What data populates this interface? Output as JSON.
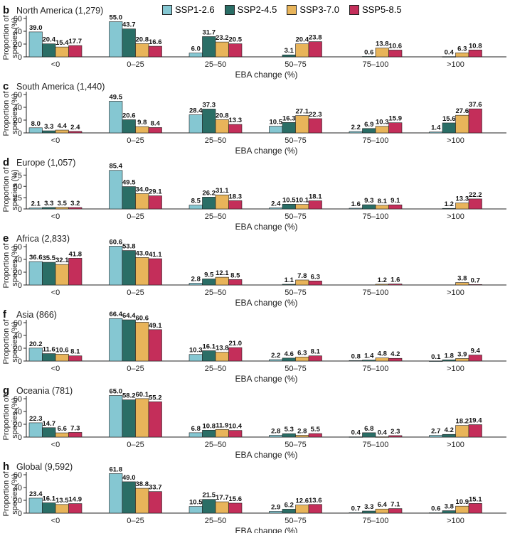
{
  "legend": [
    {
      "name": "SSP1-2.6",
      "color": "#85c7d2"
    },
    {
      "name": "SSP2-4.5",
      "color": "#2a6e66"
    },
    {
      "name": "SSP3-7.0",
      "color": "#e8b45a"
    },
    {
      "name": "SSP5-8.5",
      "color": "#c42e5a"
    }
  ],
  "chart_data": [
    {
      "type": "bar",
      "panel": "b",
      "title": "North America (1,279)",
      "categories": [
        "<0",
        "0–25",
        "25–50",
        "50–75",
        "75–100",
        ">100"
      ],
      "xlabel": "EBA change (%)",
      "ylabel": "Proportion of species (%)",
      "ylim": [
        0,
        60
      ],
      "yticks": [
        0,
        20,
        40,
        60
      ],
      "series": [
        {
          "name": "SSP1-2.6",
          "values": [
            39.0,
            55.0,
            6.0,
            0,
            0,
            0
          ],
          "labels": [
            "39.0",
            "55.0",
            "6.0",
            "",
            "",
            ""
          ]
        },
        {
          "name": "SSP2-4.5",
          "values": [
            20.4,
            43.7,
            31.7,
            3.1,
            0.6,
            0.4
          ],
          "labels": [
            "20.4",
            "43.7",
            "31.7",
            "3.1",
            "0.6",
            "0.4"
          ]
        },
        {
          "name": "SSP3-7.0",
          "values": [
            15.4,
            20.8,
            23.2,
            20.4,
            13.8,
            6.3
          ],
          "labels": [
            "15.4",
            "20.8",
            "23.2",
            "20.4",
            "13.8",
            "6.3"
          ]
        },
        {
          "name": "SSP5-8.5",
          "values": [
            17.7,
            16.6,
            20.5,
            23.8,
            10.6,
            10.8
          ],
          "labels": [
            "17.7",
            "16.6",
            "20.5",
            "23.8",
            "10.6",
            "10.8"
          ]
        }
      ]
    },
    {
      "type": "bar",
      "panel": "c",
      "title": "South America (1,440)",
      "categories": [
        "<0",
        "0–25",
        "25–50",
        "50–75",
        "75–100",
        ">100"
      ],
      "xlabel": "EBA change (%)",
      "ylabel": "Proportion of species (%)",
      "ylim": [
        0,
        60
      ],
      "yticks": [
        0,
        20,
        40,
        60
      ],
      "series": [
        {
          "name": "SSP1-2.6",
          "values": [
            8.0,
            49.5,
            28.4,
            10.5,
            2.2,
            1.4
          ],
          "labels": [
            "8.0",
            "49.5",
            "28.4",
            "10.5",
            "2.2",
            "1.4"
          ]
        },
        {
          "name": "SSP2-4.5",
          "values": [
            3.3,
            20.6,
            37.3,
            16.3,
            6.9,
            15.6
          ],
          "labels": [
            "3.3",
            "20.6",
            "37.3",
            "16.3",
            "6.9",
            "15.6"
          ]
        },
        {
          "name": "SSP3-7.0",
          "values": [
            4.4,
            9.8,
            20.8,
            27.1,
            10.3,
            27.6
          ],
          "labels": [
            "4.4",
            "9.8",
            "20.8",
            "27.1",
            "10.3",
            "27.6"
          ]
        },
        {
          "name": "SSP5-8.5",
          "values": [
            2.4,
            8.4,
            13.3,
            22.3,
            15.9,
            37.6
          ],
          "labels": [
            "2.4",
            "8.4",
            "13.3",
            "22.3",
            "15.9",
            "37.6"
          ]
        }
      ]
    },
    {
      "type": "bar",
      "panel": "d",
      "title": "Europe (1,057)",
      "categories": [
        "<0",
        "0–25",
        "25–50",
        "50–75",
        "75–100",
        ">100"
      ],
      "xlabel": "EBA change (%)",
      "ylabel": "Proportion of species (%)",
      "ylim": [
        0,
        85
      ],
      "yticks": [
        0,
        25,
        50,
        75
      ],
      "series": [
        {
          "name": "SSP1-2.6",
          "values": [
            2.1,
            85.4,
            8.5,
            2.4,
            1.6,
            0
          ],
          "labels": [
            "2.1",
            "85.4",
            "8.5",
            "2.4",
            "1.6",
            ""
          ]
        },
        {
          "name": "SSP2-4.5",
          "values": [
            3.3,
            49.5,
            26.2,
            10.5,
            9.3,
            1.2
          ],
          "labels": [
            "3.3",
            "49.5",
            "26.2",
            "10.5",
            "9.3",
            "1.2"
          ]
        },
        {
          "name": "SSP3-7.0",
          "values": [
            3.5,
            34.0,
            31.1,
            10.1,
            8.1,
            13.3
          ],
          "labels": [
            "3.5",
            "34.0",
            "31.1",
            "10.1",
            "8.1",
            "13.3"
          ]
        },
        {
          "name": "SSP5-8.5",
          "values": [
            3.2,
            29.1,
            18.3,
            18.1,
            9.1,
            22.2
          ],
          "labels": [
            "3.2",
            "29.1",
            "18.3",
            "18.1",
            "9.1",
            "22.2"
          ]
        }
      ]
    },
    {
      "type": "bar",
      "panel": "e",
      "title": "Africa (2,833)",
      "categories": [
        "<0",
        "0–25",
        "25–50",
        "50–75",
        "75–100",
        ">100"
      ],
      "xlabel": "EBA change (%)",
      "ylabel": "Proportion of species (%)",
      "ylim": [
        0,
        60
      ],
      "yticks": [
        0,
        20,
        40,
        60
      ],
      "series": [
        {
          "name": "SSP1-2.6",
          "values": [
            36.6,
            60.6,
            2.8,
            0,
            0,
            0
          ],
          "labels": [
            "36.6",
            "60.6",
            "2.8",
            "",
            "",
            ""
          ]
        },
        {
          "name": "SSP2-4.5",
          "values": [
            35.5,
            53.8,
            9.5,
            1.1,
            0,
            0
          ],
          "labels": [
            "35.5",
            "53.8",
            "9.5",
            "1.1",
            "",
            ""
          ]
        },
        {
          "name": "SSP3-7.0",
          "values": [
            32.1,
            43.0,
            12.1,
            7.8,
            1.2,
            3.8
          ],
          "labels": [
            "32.1",
            "43.0",
            "12.1",
            "7.8",
            "1.2",
            "3.8"
          ]
        },
        {
          "name": "SSP5-8.5",
          "values": [
            41.8,
            41.1,
            8.5,
            6.3,
            1.6,
            0.7
          ],
          "labels": [
            "41.8",
            "41.1",
            "8.5",
            "6.3",
            "1.6",
            "0.7"
          ]
        }
      ]
    },
    {
      "type": "bar",
      "panel": "f",
      "title": "Asia (866)",
      "categories": [
        "<0",
        "0–25",
        "25–50",
        "50–75",
        "75–100",
        ">100"
      ],
      "xlabel": "EBA change (%)",
      "ylabel": "Proportion of species (%)",
      "ylim": [
        0,
        60
      ],
      "yticks": [
        0,
        20,
        40,
        60
      ],
      "series": [
        {
          "name": "SSP1-2.6",
          "values": [
            20.2,
            66.4,
            10.3,
            2.2,
            0.8,
            0.1
          ],
          "labels": [
            "20.2",
            "66.4",
            "10.3",
            "2.2",
            "0.8",
            "0.1"
          ]
        },
        {
          "name": "SSP2-4.5",
          "values": [
            11.6,
            64.4,
            16.1,
            4.6,
            1.4,
            1.8
          ],
          "labels": [
            "11.6",
            "64.4",
            "16.1",
            "4.6",
            "1.4",
            "1.8"
          ]
        },
        {
          "name": "SSP3-7.0",
          "values": [
            10.6,
            60.6,
            13.8,
            6.3,
            4.8,
            3.9
          ],
          "labels": [
            "10.6",
            "60.6",
            "13.8",
            "6.3",
            "4.8",
            "3.9"
          ]
        },
        {
          "name": "SSP5-8.5",
          "values": [
            8.1,
            49.1,
            21.0,
            8.1,
            4.2,
            9.4
          ],
          "labels": [
            "8.1",
            "49.1",
            "21.0",
            "8.1",
            "4.2",
            "9.4"
          ]
        }
      ]
    },
    {
      "type": "bar",
      "panel": "g",
      "title": "Oceania (781)",
      "categories": [
        "<0",
        "0–25",
        "25–50",
        "50–75",
        "75–100",
        ">100"
      ],
      "xlabel": "EBA change (%)",
      "ylabel": "Proportion of species (%)",
      "ylim": [
        0,
        60
      ],
      "yticks": [
        0,
        20,
        40,
        60
      ],
      "series": [
        {
          "name": "SSP1-2.6",
          "values": [
            22.3,
            65.0,
            6.8,
            2.8,
            0.4,
            2.7
          ],
          "labels": [
            "22.3",
            "65.0",
            "6.8",
            "2.8",
            "0.4",
            "2.7"
          ]
        },
        {
          "name": "SSP2-4.5",
          "values": [
            14.7,
            58.2,
            10.8,
            5.3,
            6.8,
            4.2
          ],
          "labels": [
            "14.7",
            "58.2",
            "10.8",
            "5.3",
            "6.8",
            "4.2"
          ]
        },
        {
          "name": "SSP3-7.0",
          "values": [
            6.6,
            60.1,
            11.9,
            2.8,
            0.4,
            18.2
          ],
          "labels": [
            "6.6",
            "60.1",
            "11.9",
            "2.8",
            "0.4",
            "18.2"
          ]
        },
        {
          "name": "SSP5-8.5",
          "values": [
            7.3,
            55.2,
            10.4,
            5.5,
            2.3,
            19.4
          ],
          "labels": [
            "7.3",
            "55.2",
            "10.4",
            "5.5",
            "2.3",
            "19.4"
          ]
        }
      ]
    },
    {
      "type": "bar",
      "panel": "h",
      "title": "Global (9,592)",
      "categories": [
        "<0",
        "0–25",
        "25–50",
        "50–75",
        "75–100",
        ">100"
      ],
      "xlabel": "EBA change (%)",
      "ylabel": "Proportion of species (%)",
      "ylim": [
        0,
        60
      ],
      "yticks": [
        0,
        20,
        40,
        60
      ],
      "series": [
        {
          "name": "SSP1-2.6",
          "values": [
            23.4,
            61.8,
            10.5,
            2.9,
            0.7,
            0.6
          ],
          "labels": [
            "23.4",
            "61.8",
            "10.5",
            "2.9",
            "0.7",
            "0.6"
          ]
        },
        {
          "name": "SSP2-4.5",
          "values": [
            16.1,
            49.0,
            21.5,
            6.2,
            3.3,
            3.8
          ],
          "labels": [
            "16.1",
            "49.0",
            "21.5",
            "6.2",
            "3.3",
            "3.8"
          ]
        },
        {
          "name": "SSP3-7.0",
          "values": [
            13.5,
            38.8,
            17.7,
            12.6,
            6.4,
            10.9
          ],
          "labels": [
            "13.5",
            "38.8",
            "17.7",
            "12.6",
            "6.4",
            "10.9"
          ]
        },
        {
          "name": "SSP5-8.5",
          "values": [
            14.9,
            33.7,
            15.6,
            13.6,
            7.1,
            15.1
          ],
          "labels": [
            "14.9",
            "33.7",
            "15.6",
            "13.6",
            "7.1",
            "15.1"
          ]
        }
      ]
    }
  ]
}
